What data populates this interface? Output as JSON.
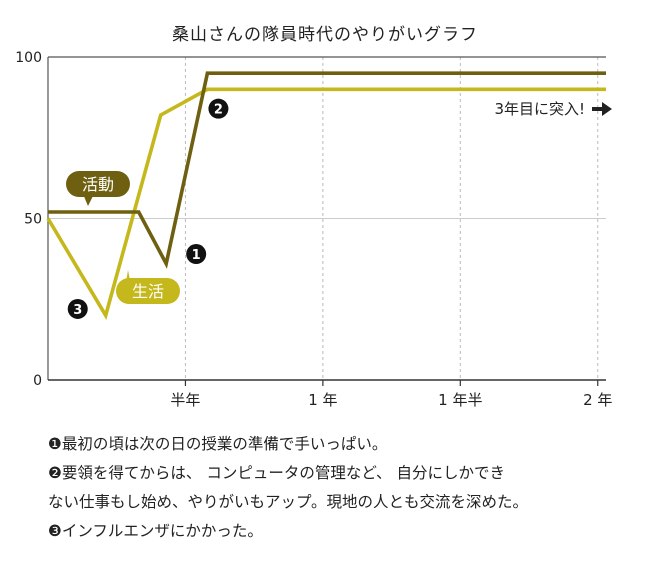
{
  "chart_data": {
    "type": "line",
    "title": "桑山さんの隊員時代のやりがいグラフ",
    "x_tick_labels": [
      "半年",
      "1 年",
      "1 年半",
      "2 年"
    ],
    "x_ticks": [
      0.5,
      1.0,
      1.5,
      2.0
    ],
    "y_ticks": [
      0,
      50,
      100
    ],
    "ylim": [
      0,
      100
    ],
    "xlim": [
      0,
      2.03
    ],
    "grid": true,
    "series": [
      {
        "name": "活動",
        "color": "#6e6010",
        "x": [
          0,
          0.33,
          0.43,
          0.58,
          2.03
        ],
        "y": [
          52,
          52,
          36,
          95,
          95
        ]
      },
      {
        "name": "生活",
        "color": "#c4b81c",
        "x": [
          0,
          0.21,
          0.41,
          0.58,
          2.03
        ],
        "y": [
          50,
          20,
          82,
          90,
          90
        ]
      }
    ],
    "annotations": [
      {
        "id": "1",
        "marker": "❶",
        "x": 0.51,
        "y": 39
      },
      {
        "id": "2",
        "marker": "❷",
        "x": 0.62,
        "y": 84
      },
      {
        "id": "3",
        "marker": "❸",
        "x": 0.13,
        "y": 22
      }
    ],
    "arrow_label": "3年目に突入!"
  },
  "notes": [
    "❶最初の頃は次の日の授業の準備で手いっぱい。",
    "❷要領を得てからは、 コンピュータの管理など、 自分にしかでき",
    "ない仕事もし始め、やりがいもアップ。現地の人とも交流を深めた。",
    "❸インフルエンザにかかった。"
  ]
}
